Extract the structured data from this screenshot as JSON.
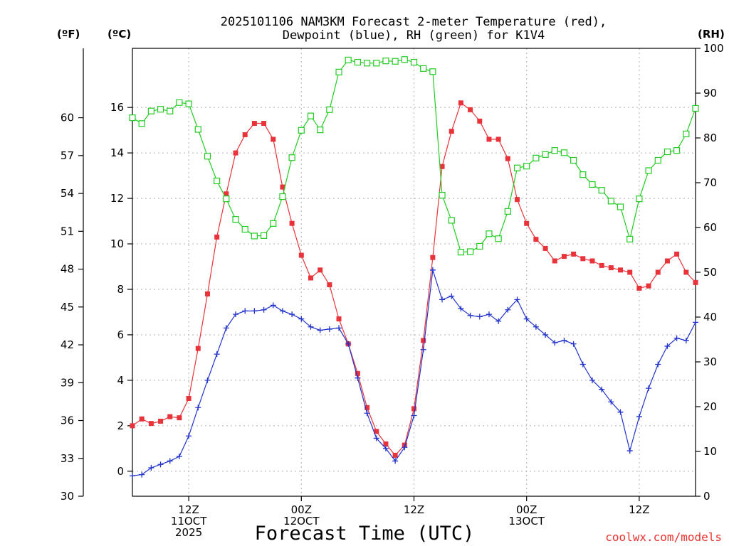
{
  "chart_data": {
    "type": "line",
    "title_line1": "2025101106 NAM3KM Forecast 2-meter Temperature (red),",
    "title_line2": "Dewpoint (blue), RH (green) for K1V4",
    "xlabel": "Forecast Time (UTC)",
    "credit": "coolwx.com/models",
    "units": {
      "f": "(ºF)",
      "c": "(ºC)",
      "rh": "(RH)"
    },
    "x_range_hours": [
      6,
      66
    ],
    "xticks": [
      {
        "hour": 12,
        "labels": [
          "12Z",
          "11OCT",
          "2025"
        ]
      },
      {
        "hour": 24,
        "labels": [
          "00Z",
          "12OCT"
        ]
      },
      {
        "hour": 36,
        "labels": [
          "12Z"
        ]
      },
      {
        "hour": 48,
        "labels": [
          "00Z",
          "13OCT"
        ]
      },
      {
        "hour": 60,
        "labels": [
          "12Z"
        ]
      }
    ],
    "y_left_c": {
      "range": [
        -1.1,
        18.6
      ],
      "ticks": [
        "0",
        "2",
        "4",
        "6",
        "8",
        "10",
        "12",
        "14",
        "16"
      ]
    },
    "y_left_f": {
      "range": [
        30,
        65.5
      ],
      "ticks": [
        "30",
        "33",
        "36",
        "39",
        "42",
        "45",
        "48",
        "51",
        "54",
        "57",
        "60"
      ]
    },
    "y_right_rh": {
      "range": [
        0,
        100
      ],
      "ticks": [
        "0",
        "10",
        "20",
        "30",
        "40",
        "50",
        "60",
        "70",
        "80",
        "90",
        "100"
      ]
    },
    "series": [
      {
        "name": "Temperature",
        "unit": "C",
        "color": "#e8333a",
        "marker": "filled-square",
        "x": [
          6,
          7,
          8,
          9,
          10,
          11,
          12,
          13,
          14,
          15,
          16,
          17,
          18,
          19,
          20,
          21,
          22,
          23,
          24,
          25,
          26,
          27,
          28,
          29,
          30,
          31,
          32,
          33,
          34,
          35,
          36,
          37,
          38,
          39,
          40,
          41,
          42,
          43,
          44,
          45,
          46,
          47,
          48,
          49,
          50,
          51,
          52,
          53,
          54,
          55,
          56,
          57,
          58,
          59,
          60,
          61,
          62,
          63,
          64,
          65,
          66
        ],
        "values": [
          2.0,
          2.3,
          2.1,
          2.2,
          2.4,
          2.35,
          3.2,
          5.4,
          7.8,
          10.3,
          12.2,
          14.0,
          14.8,
          15.3,
          15.3,
          14.6,
          12.5,
          10.9,
          9.5,
          8.5,
          8.85,
          8.2,
          6.7,
          5.6,
          4.3,
          2.8,
          1.75,
          1.2,
          0.7,
          1.15,
          2.75,
          5.75,
          9.4,
          13.4,
          14.95,
          16.2,
          15.9,
          15.4,
          14.6,
          14.6,
          13.75,
          11.95,
          10.9,
          10.2,
          9.8,
          9.25,
          9.45,
          9.55,
          9.35,
          9.25,
          9.05,
          8.95,
          8.85,
          8.75,
          8.05,
          8.15,
          8.75,
          9.25,
          9.55,
          8.75,
          8.3
        ]
      },
      {
        "name": "Dewpoint",
        "unit": "C",
        "color": "#2233cc",
        "marker": "plus",
        "x": [
          6,
          7,
          8,
          9,
          10,
          11,
          12,
          13,
          14,
          15,
          16,
          17,
          18,
          19,
          20,
          21,
          22,
          23,
          24,
          25,
          26,
          27,
          28,
          29,
          30,
          31,
          32,
          33,
          34,
          35,
          36,
          37,
          38,
          39,
          40,
          41,
          42,
          43,
          44,
          45,
          46,
          47,
          48,
          49,
          50,
          51,
          52,
          53,
          54,
          55,
          56,
          57,
          58,
          59,
          60,
          61,
          62,
          63,
          64,
          65,
          66
        ],
        "values": [
          -0.2,
          -0.15,
          0.15,
          0.3,
          0.45,
          0.65,
          1.55,
          2.8,
          4.0,
          5.15,
          6.3,
          6.9,
          7.05,
          7.05,
          7.1,
          7.3,
          7.05,
          6.9,
          6.7,
          6.35,
          6.2,
          6.25,
          6.3,
          5.6,
          4.1,
          2.55,
          1.45,
          1.0,
          0.45,
          1.05,
          2.45,
          5.35,
          8.85,
          7.55,
          7.7,
          7.15,
          6.85,
          6.8,
          6.9,
          6.6,
          7.1,
          7.55,
          6.7,
          6.35,
          6.0,
          5.65,
          5.75,
          5.6,
          4.7,
          4.0,
          3.6,
          3.05,
          2.6,
          0.9,
          2.4,
          3.65,
          4.7,
          5.5,
          5.85,
          5.75,
          6.55
        ]
      },
      {
        "name": "RH",
        "unit": "%",
        "color": "#22cc22",
        "marker": "open-square",
        "x": [
          6,
          7,
          8,
          9,
          10,
          11,
          12,
          13,
          14,
          15,
          16,
          17,
          18,
          19,
          20,
          21,
          22,
          23,
          24,
          25,
          26,
          27,
          28,
          29,
          30,
          31,
          32,
          33,
          34,
          35,
          36,
          37,
          38,
          39,
          40,
          41,
          42,
          43,
          44,
          45,
          46,
          47,
          48,
          49,
          50,
          51,
          52,
          53,
          54,
          55,
          56,
          57,
          58,
          59,
          60,
          61,
          62,
          63,
          64,
          65,
          66
        ],
        "values": [
          84.5,
          83.2,
          86.0,
          86.4,
          86.0,
          87.9,
          87.6,
          81.9,
          75.9,
          70.4,
          66.4,
          61.8,
          59.6,
          58.1,
          58.2,
          60.9,
          66.9,
          75.6,
          81.7,
          84.9,
          81.8,
          86.3,
          94.7,
          97.4,
          96.9,
          96.7,
          96.7,
          97.2,
          97.1,
          97.5,
          96.9,
          95.5,
          94.8,
          67.2,
          61.6,
          54.5,
          54.6,
          55.8,
          58.6,
          57.5,
          63.6,
          73.3,
          73.7,
          75.5,
          76.3,
          77.2,
          76.7,
          75.0,
          71.8,
          69.6,
          68.3,
          65.9,
          64.6,
          57.4,
          66.4,
          72.7,
          75.0,
          76.9,
          77.2,
          80.9,
          86.6
        ]
      }
    ]
  }
}
